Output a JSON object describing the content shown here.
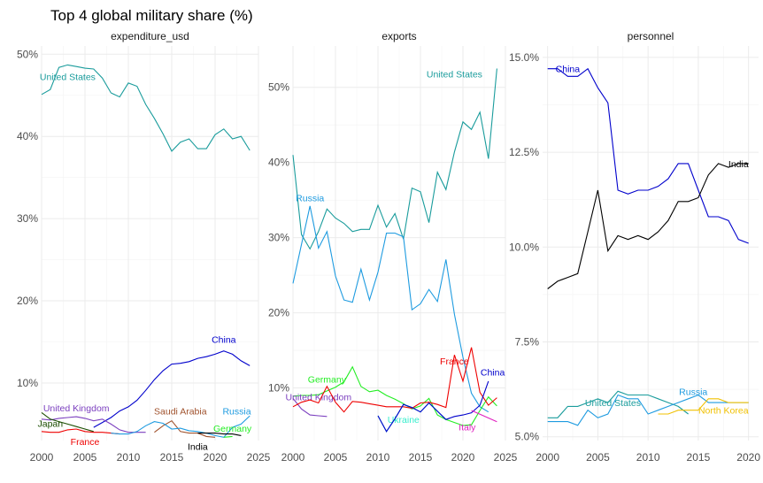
{
  "chart_data": {
    "type": "line",
    "title": "Top 4 global military share (%)",
    "facets": [
      {
        "name": "expenditure_usd",
        "xlim": [
          2000,
          2025
        ],
        "ylim": [
          3,
          51
        ],
        "x_ticks": [
          2000,
          2005,
          2010,
          2015,
          2020,
          2025
        ],
        "y_ticks": [
          10,
          20,
          30,
          40,
          50
        ],
        "y_tick_labels": [
          "10%",
          "20%",
          "30%",
          "40%",
          "50%"
        ],
        "series": [
          {
            "name": "United States",
            "color": "#1a9c9c",
            "label_at": [
              2003,
              47.3
            ],
            "x": [
              2000,
              2001,
              2002,
              2003,
              2004,
              2005,
              2006,
              2007,
              2008,
              2009,
              2010,
              2011,
              2012,
              2013,
              2014,
              2015,
              2016,
              2017,
              2018,
              2019,
              2020,
              2021,
              2022,
              2023,
              2024
            ],
            "y": [
              45.1,
              45.7,
              48.4,
              48.7,
              48.5,
              48.3,
              48.2,
              47.1,
              45.3,
              44.8,
              46.5,
              46.1,
              43.9,
              42.2,
              40.3,
              38.2,
              39.3,
              39.7,
              38.5,
              38.5,
              40.2,
              40.9,
              39.7,
              40.0,
              38.3
            ]
          },
          {
            "name": "China",
            "color": "#0000cc",
            "label_at": [
              2021,
              15.3
            ],
            "x": [
              2006,
              2007,
              2008,
              2009,
              2010,
              2011,
              2012,
              2013,
              2014,
              2015,
              2016,
              2017,
              2018,
              2019,
              2020,
              2021,
              2022,
              2023,
              2024
            ],
            "y": [
              4.6,
              5.2,
              5.8,
              6.6,
              7.1,
              7.9,
              9.1,
              10.4,
              11.5,
              12.3,
              12.4,
              12.6,
              13.0,
              13.2,
              13.5,
              13.9,
              13.5,
              12.7,
              12.1
            ]
          },
          {
            "name": "United Kingdom",
            "color": "#7b3fbf",
            "label_at": [
              2004,
              7.0
            ],
            "x": [
              2000,
              2001,
              2002,
              2003,
              2004,
              2005,
              2006,
              2007,
              2008,
              2009,
              2010,
              2011,
              2012
            ],
            "y": [
              5.6,
              5.5,
              5.7,
              5.8,
              5.9,
              5.7,
              5.4,
              5.6,
              5.0,
              4.3,
              4.0,
              4.0,
              4.0
            ]
          },
          {
            "name": "Japan",
            "color": "#1a4d00",
            "label_at": [
              2001,
              5.1
            ],
            "x": [
              2000,
              2001,
              2002,
              2003,
              2004,
              2005,
              2006
            ],
            "y": [
              6.4,
              5.6,
              5.3,
              5.0,
              4.7,
              4.4,
              4.1
            ]
          },
          {
            "name": "France",
            "color": "#ee0000",
            "label_at": [
              2005,
              2.9
            ],
            "x": [
              2000,
              2001,
              2002,
              2003,
              2004,
              2005,
              2006,
              2007,
              2008,
              2009
            ],
            "y": [
              4.1,
              4.0,
              4.0,
              4.3,
              4.4,
              4.1,
              4.0,
              4.0,
              3.9,
              3.8
            ]
          },
          {
            "name": "Saudi Arabia",
            "color": "#a0522d",
            "label_at": [
              2016,
              6.6
            ],
            "x": [
              2013,
              2014,
              2015,
              2016,
              2017,
              2018,
              2019,
              2020
            ],
            "y": [
              4.0,
              4.8,
              5.4,
              4.1,
              3.9,
              3.9,
              3.5,
              3.4
            ]
          },
          {
            "name": "Russia",
            "color": "#1e9be0",
            "label_at": [
              2022.5,
              6.6
            ],
            "x": [
              2008,
              2009,
              2010,
              2011,
              2012,
              2013,
              2014,
              2015,
              2016,
              2017,
              2018,
              2019,
              2020,
              2021,
              2022,
              2023,
              2024
            ],
            "y": [
              3.9,
              3.8,
              3.8,
              4.1,
              4.8,
              5.3,
              5.1,
              4.4,
              4.5,
              4.2,
              4.1,
              3.9,
              3.6,
              3.4,
              4.6,
              5.0,
              6.0
            ]
          },
          {
            "name": "India",
            "color": "#000000",
            "label_at": [
              2018,
              2.3
            ],
            "x": [
              2018,
              2019,
              2020,
              2021,
              2022,
              2023
            ],
            "y": [
              3.9,
              3.9,
              3.9,
              3.8,
              3.8,
              3.6
            ]
          },
          {
            "name": "Germany",
            "color": "#22ee22",
            "label_at": [
              2022,
              4.5
            ],
            "x": [
              2021,
              2022
            ],
            "y": [
              3.4,
              3.5
            ]
          }
        ]
      },
      {
        "name": "exports",
        "xlim": [
          2000,
          2025
        ],
        "ylim": [
          3,
          55.5
        ],
        "x_ticks": [
          2000,
          2005,
          2010,
          2015,
          2020,
          2025
        ],
        "y_ticks": [
          10,
          20,
          30,
          40,
          50
        ],
        "y_tick_labels": [
          "10%",
          "20%",
          "30%",
          "40%",
          "50%"
        ],
        "series": [
          {
            "name": "United States",
            "color": "#1a9c9c",
            "label_at": [
              2019,
              51.8
            ],
            "x": [
              2000,
              2001,
              2002,
              2003,
              2004,
              2005,
              2006,
              2007,
              2008,
              2009,
              2010,
              2011,
              2012,
              2013,
              2014,
              2015,
              2016,
              2017,
              2018,
              2019,
              2020,
              2021,
              2022,
              2023,
              2024
            ],
            "y": [
              41.0,
              30.4,
              28.5,
              30.8,
              33.8,
              32.6,
              31.9,
              30.8,
              31.1,
              31.1,
              34.3,
              31.4,
              33.2,
              29.8,
              36.6,
              36.1,
              32.0,
              38.7,
              36.4,
              41.4,
              45.4,
              44.4,
              46.7,
              40.5,
              52.5
            ]
          },
          {
            "name": "Russia",
            "color": "#1e9be0",
            "label_at": [
              2002,
              35.3
            ],
            "x": [
              2000,
              2001,
              2002,
              2003,
              2004,
              2005,
              2006,
              2007,
              2008,
              2009,
              2010,
              2011,
              2012,
              2013,
              2014,
              2015,
              2016,
              2017,
              2018,
              2019,
              2020,
              2021,
              2022,
              2023
            ],
            "y": [
              23.9,
              29.1,
              34.2,
              28.6,
              30.8,
              24.9,
              21.7,
              21.4,
              25.8,
              21.7,
              25.4,
              30.6,
              30.6,
              30.1,
              20.4,
              21.2,
              23.1,
              21.5,
              27.1,
              19.8,
              14.1,
              9.3,
              7.5,
              6.8
            ]
          },
          {
            "name": "Germany",
            "color": "#22ee22",
            "label_at": [
              2004,
              11.2
            ],
            "x": [
              2000,
              2001,
              2002,
              2003,
              2004,
              2005,
              2006,
              2007,
              2008,
              2009,
              2010,
              2011,
              2012,
              2013,
              2014,
              2015,
              2016,
              2017,
              2018,
              2019,
              2020,
              2021,
              2022,
              2023,
              2024
            ],
            "y": [
              8.9,
              9.0,
              9.0,
              9.1,
              9.6,
              10.1,
              10.8,
              12.8,
              10.2,
              9.5,
              9.7,
              9.0,
              8.5,
              7.9,
              7.2,
              7.6,
              8.6,
              6.4,
              5.8,
              5.4,
              5.0,
              5.1,
              7.0,
              8.8,
              7.6
            ]
          },
          {
            "name": "United Kingdom",
            "color": "#7b3fbf",
            "label_at": [
              2003,
              8.8
            ],
            "x": [
              2000,
              2001,
              2002,
              2003,
              2004
            ],
            "y": [
              8.6,
              7.2,
              6.4,
              6.3,
              6.2
            ]
          },
          {
            "name": "France",
            "color": "#ee0000",
            "label_at": [
              2019,
              13.6
            ],
            "x": [
              2000,
              2001,
              2002,
              2003,
              2004,
              2005,
              2006,
              2007,
              2008,
              2009,
              2010,
              2011,
              2012,
              2013,
              2014,
              2015,
              2016,
              2017,
              2018,
              2019,
              2020,
              2021,
              2022,
              2023,
              2024
            ],
            "y": [
              7.5,
              8.1,
              8.4,
              8.0,
              10.2,
              8.1,
              6.8,
              8.2,
              8.1,
              7.9,
              7.7,
              7.5,
              7.5,
              7.5,
              7.3,
              8.0,
              8.1,
              7.8,
              7.4,
              14.4,
              10.9,
              15.4,
              9.4,
              7.7,
              8.7
            ]
          },
          {
            "name": "Ukraine",
            "color": "#33eecc",
            "label_at": [
              2013,
              5.8
            ],
            "x": [
              2010,
              2011,
              2012,
              2013,
              2014,
              2015,
              2016,
              2017,
              2018
            ],
            "y": [
              6.3,
              4.2,
              5.9,
              7.8,
              7.4,
              6.8,
              8.0,
              6.9,
              5.8
            ]
          },
          {
            "name": "China",
            "color": "#0000cc",
            "label_at": [
              2023.5,
              12.1
            ],
            "x": [
              2010,
              2011,
              2012,
              2013,
              2014,
              2015,
              2016,
              2017,
              2018,
              2019,
              2020,
              2021,
              2022,
              2023
            ],
            "y": [
              6.3,
              4.2,
              5.9,
              7.8,
              7.4,
              6.8,
              8.0,
              6.9,
              5.8,
              6.2,
              6.4,
              6.7,
              7.7,
              10.9
            ]
          },
          {
            "name": "Italy",
            "color": "#e020c0",
            "label_at": [
              2020.5,
              4.8
            ],
            "x": [
              2021,
              2022,
              2023,
              2024
            ],
            "y": [
              7.0,
              6.5,
              6.0,
              5.5
            ]
          }
        ]
      },
      {
        "name": "personnel",
        "xlim": [
          1999.5,
          2021
        ],
        "ylim": [
          4.9,
          15.3
        ],
        "x_ticks": [
          2000,
          2005,
          2010,
          2015,
          2020
        ],
        "y_ticks": [
          5.0,
          7.5,
          10.0,
          12.5,
          15.0
        ],
        "y_tick_labels": [
          "5.0%",
          "7.5%",
          "10.0%",
          "12.5%",
          "15.0%"
        ],
        "series": [
          {
            "name": "China",
            "color": "#0000cc",
            "label_at": [
              2002,
              14.7
            ],
            "x": [
              2000,
              2001,
              2002,
              2003,
              2004,
              2005,
              2006,
              2007,
              2008,
              2009,
              2010,
              2011,
              2012,
              2013,
              2014,
              2015,
              2016,
              2017,
              2018,
              2019,
              2020
            ],
            "y": [
              14.7,
              14.7,
              14.5,
              14.5,
              14.7,
              14.2,
              13.8,
              11.5,
              11.4,
              11.5,
              11.5,
              11.6,
              11.8,
              12.2,
              12.2,
              11.5,
              10.8,
              10.8,
              10.7,
              10.2,
              10.1
            ]
          },
          {
            "name": "India",
            "color": "#000000",
            "label_at": [
              2019,
              12.2
            ],
            "x": [
              2000,
              2001,
              2002,
              2003,
              2004,
              2005,
              2006,
              2007,
              2008,
              2009,
              2010,
              2011,
              2012,
              2013,
              2014,
              2015,
              2016,
              2017,
              2018,
              2019,
              2020
            ],
            "y": [
              8.9,
              9.1,
              9.2,
              9.3,
              10.4,
              11.5,
              9.9,
              10.3,
              10.2,
              10.3,
              10.2,
              10.4,
              10.7,
              11.2,
              11.2,
              11.3,
              11.9,
              12.2,
              12.1,
              12.2,
              12.2
            ]
          },
          {
            "name": "United States",
            "color": "#1a9c9c",
            "label_at": [
              2006.5,
              5.9
            ],
            "x": [
              2000,
              2001,
              2002,
              2003,
              2004,
              2005,
              2006,
              2007,
              2008,
              2009,
              2010,
              2011,
              2012,
              2013,
              2014
            ],
            "y": [
              5.5,
              5.5,
              5.8,
              5.8,
              5.9,
              6.0,
              5.9,
              6.2,
              6.1,
              6.1,
              6.1,
              6.0,
              5.9,
              5.8,
              5.6
            ]
          },
          {
            "name": "Russia",
            "color": "#1e9be0",
            "label_at": [
              2014.5,
              6.2
            ],
            "x": [
              2000,
              2001,
              2002,
              2003,
              2004,
              2005,
              2006,
              2007,
              2008,
              2009,
              2010,
              2011,
              2012,
              2013,
              2014,
              2015,
              2016,
              2017,
              2018,
              2019,
              2020
            ],
            "y": [
              5.4,
              5.4,
              5.4,
              5.3,
              5.7,
              5.5,
              5.6,
              6.1,
              6.0,
              6.0,
              5.6,
              5.7,
              5.8,
              5.9,
              6.0,
              6.1,
              5.9,
              5.9,
              5.9,
              5.9,
              5.9
            ]
          },
          {
            "name": "North Korea",
            "color": "#f0c000",
            "label_at": [
              2017.5,
              5.7
            ],
            "x": [
              2011,
              2012,
              2013,
              2014,
              2015,
              2016,
              2017,
              2018,
              2019,
              2020
            ],
            "y": [
              5.6,
              5.6,
              5.7,
              5.7,
              5.7,
              6.0,
              6.0,
              5.9,
              5.9,
              5.9
            ]
          }
        ]
      }
    ]
  }
}
